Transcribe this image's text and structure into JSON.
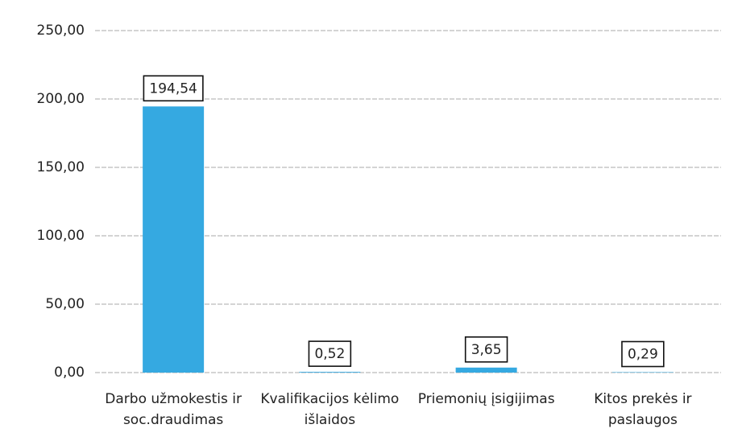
{
  "chart_data": {
    "type": "bar",
    "categories": [
      "Darbo užmokestis ir soc.draudimas",
      "Kvalifikacijos kėlimo išlaidos",
      "Priemonių įsigijimas",
      "Kitos prekės ir paslaugos"
    ],
    "values": [
      194.54,
      0.52,
      3.65,
      0.29
    ],
    "value_labels": [
      "194,54",
      "0,52",
      "3,65",
      "0,29"
    ],
    "color": "#35a9e1",
    "ylim": [
      0,
      250
    ],
    "yticks": [
      {
        "value": 0,
        "label": "0,00"
      },
      {
        "value": 50,
        "label": "50,00"
      },
      {
        "value": 100,
        "label": "100,00"
      },
      {
        "value": 150,
        "label": "150,00"
      },
      {
        "value": 200,
        "label": "200,00"
      },
      {
        "value": 250,
        "label": "250,00"
      }
    ],
    "grid": true
  }
}
